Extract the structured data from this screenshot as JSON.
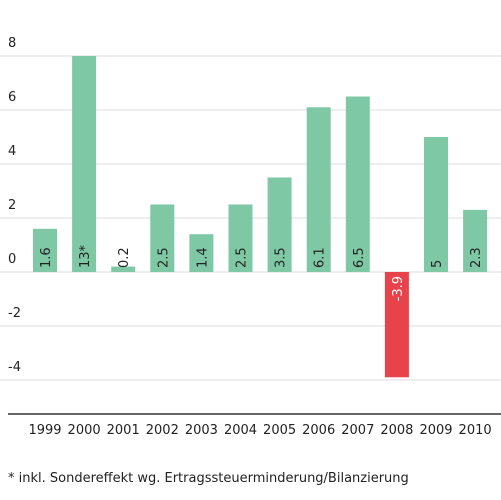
{
  "chart_data": {
    "type": "bar",
    "categories": [
      "1999",
      "2000",
      "2001",
      "2002",
      "2003",
      "2004",
      "2005",
      "2006",
      "2007",
      "2008",
      "2009",
      "2010"
    ],
    "values": [
      1.6,
      13,
      0.2,
      2.5,
      1.4,
      2.5,
      3.5,
      6.1,
      6.5,
      -3.9,
      5,
      2.3
    ],
    "value_labels": [
      "1.6",
      "13*",
      "0.2",
      "2.5",
      "1.4",
      "2.5",
      "3.5",
      "6.1",
      "6.5",
      "-3.9",
      "5",
      "2.3"
    ],
    "color": "#7fc8a6",
    "negative_color": "#e8434b",
    "ylim": [
      -5.26,
      8
    ],
    "yticks": [
      -4,
      -2,
      0,
      2,
      4,
      6,
      8
    ],
    "grid": true,
    "footnote": "* inkl. Sondereffekt wg. Ertragssteuerminderung/Bilanzierung"
  }
}
